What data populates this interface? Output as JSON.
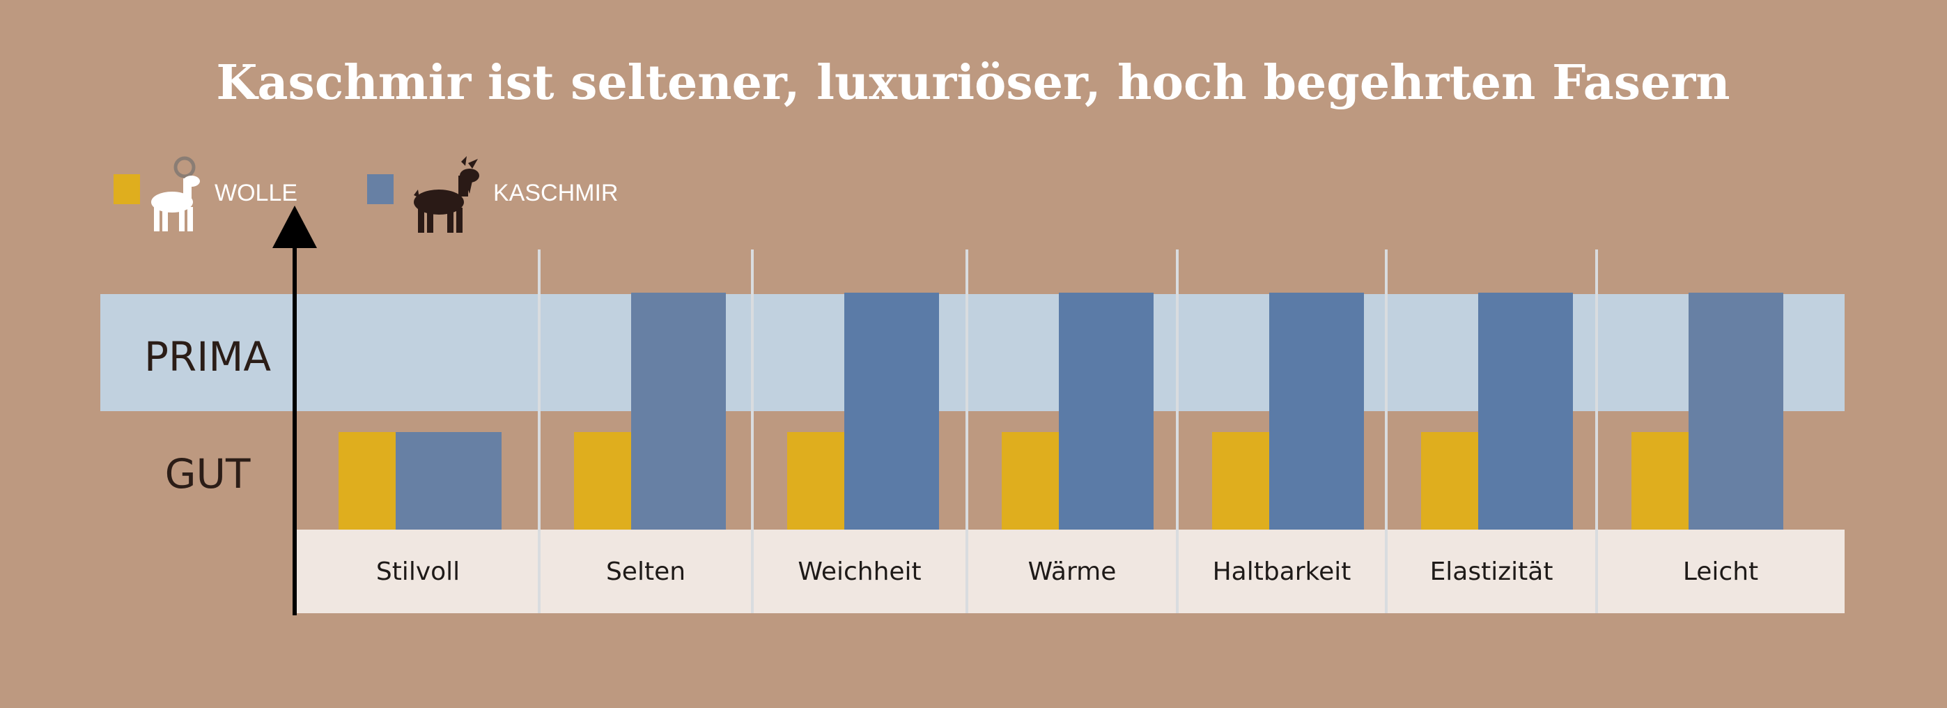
{
  "chart_data": {
    "type": "bar",
    "title": "Kaschmir ist seltener, luxuriöser, hoch begehrten Fasern",
    "categories": [
      "Stilvoll",
      "Selten",
      "Weichheit",
      "Wärme",
      "Haltbarkeit",
      "Elastizität",
      "Leicht"
    ],
    "y_levels": [
      "GUT",
      "PRIMA"
    ],
    "ylim": [
      0,
      2
    ],
    "series": [
      {
        "name": "WOLLE",
        "color": "#dfae1e",
        "icon": "sheep-icon",
        "values": [
          1,
          1,
          1,
          1,
          1,
          1,
          1
        ]
      },
      {
        "name": "KASCHMIR",
        "color": "#5b7ba7",
        "icon": "goat-icon",
        "values": [
          1,
          2,
          2,
          2,
          2,
          2,
          2
        ]
      }
    ],
    "colors": {
      "background": "#bd9980",
      "prima_band": "#c1d1df",
      "category_band": "#f0e7e1",
      "axis": "#000000",
      "divider": "#d9dcdf",
      "title": "#ffffff",
      "legend_text": "#ffffff",
      "level_text": "#2b1d17",
      "kaschmir_alt": "#6780a4"
    },
    "legend_position": "top-left",
    "grid": false
  }
}
